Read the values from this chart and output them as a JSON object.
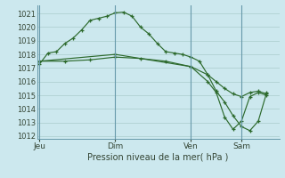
{
  "bg_color": "#cce8ee",
  "grid_color": "#aacccc",
  "line_color": "#2d6a2d",
  "vline_color": "#6699aa",
  "title": "Pression niveau de la mer( hPa )",
  "ylim": [
    1011.8,
    1021.6
  ],
  "yticks": [
    1012,
    1013,
    1014,
    1015,
    1016,
    1017,
    1018,
    1019,
    1020,
    1021
  ],
  "xtick_labels": [
    "Jeu",
    "Dim",
    "Ven",
    "Sam"
  ],
  "xtick_positions": [
    0,
    9,
    18,
    24
  ],
  "vline_positions": [
    0,
    9,
    18,
    24
  ],
  "xlim": [
    -0.3,
    28.5
  ],
  "s1x": [
    0,
    1,
    2,
    3,
    4,
    5,
    6,
    7,
    8,
    9,
    10,
    11,
    12,
    13,
    14,
    15,
    16,
    17,
    18,
    19,
    20,
    21,
    22,
    23,
    24,
    25,
    26,
    27
  ],
  "s1y": [
    1017.3,
    1018.1,
    1018.2,
    1018.8,
    1019.2,
    1019.8,
    1020.5,
    1020.65,
    1020.8,
    1021.05,
    1021.1,
    1020.8,
    1020.0,
    1019.5,
    1018.8,
    1018.2,
    1018.1,
    1018.0,
    1017.8,
    1017.5,
    1016.5,
    1015.3,
    1014.5,
    1013.5,
    1012.7,
    1012.4,
    1013.1,
    1015.2
  ],
  "s2x": [
    0,
    3,
    6,
    9,
    12,
    15,
    18,
    20,
    21,
    22,
    23,
    24,
    25,
    26,
    27
  ],
  "s2y": [
    1017.5,
    1017.5,
    1017.6,
    1017.8,
    1017.7,
    1017.5,
    1017.1,
    1016.5,
    1016.0,
    1015.5,
    1015.1,
    1014.9,
    1015.2,
    1015.3,
    1015.1
  ],
  "s3x": [
    0,
    9,
    18,
    20,
    21,
    22,
    23,
    24,
    25,
    26,
    27
  ],
  "s3y": [
    1017.5,
    1018.0,
    1017.1,
    1016.0,
    1015.2,
    1013.4,
    1012.5,
    1013.1,
    1014.9,
    1015.2,
    1015.0
  ]
}
